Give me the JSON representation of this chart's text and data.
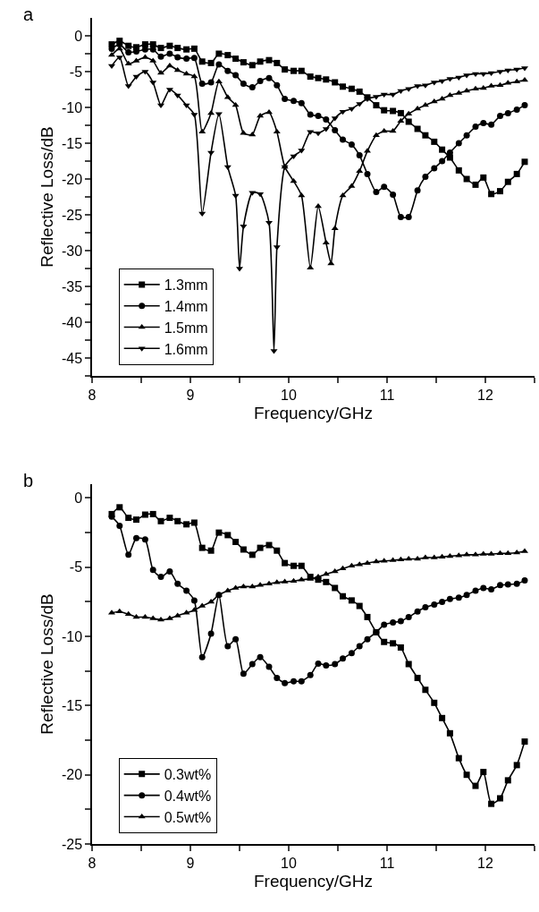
{
  "chart_data": [
    {
      "type": "line",
      "title": "a",
      "xlabel": "Frequency/GHz",
      "ylabel": "Reflective Loss/dB",
      "legend": "bottom left",
      "line_style": "solid",
      "xlim": [
        8,
        12.5
      ],
      "xticks": [
        8,
        {
          "value": 8.5,
          "label": null
        },
        9,
        {
          "value": 9.5,
          "label": null
        },
        10,
        {
          "value": 10.5,
          "label": null
        },
        11,
        {
          "value": 11.5,
          "label": null
        },
        12,
        {
          "value": 12.5,
          "label": null
        }
      ],
      "ylim": [
        -47.5,
        2.5
      ],
      "yticks": [
        0,
        {
          "value": -2.5,
          "label": null
        },
        -5,
        {
          "value": -7.5,
          "label": null
        },
        -10,
        {
          "value": -12.5,
          "label": null
        },
        -15,
        {
          "value": -17.5,
          "label": null
        },
        -20,
        {
          "value": -22.5,
          "label": null
        },
        -25,
        {
          "value": -27.5,
          "label": null
        },
        -30,
        {
          "value": -32.5,
          "label": null
        },
        -35,
        {
          "value": -37.5,
          "label": null
        },
        -40,
        {
          "value": -42.5,
          "label": null
        },
        -45,
        {
          "value": -47.5,
          "label": null
        }
      ],
      "x": [
        8.2,
        8.28,
        8.37,
        8.45,
        8.54,
        8.62,
        8.7,
        8.79,
        8.87,
        8.96,
        9.04,
        9.12,
        9.21,
        9.29,
        9.38,
        9.46,
        9.54,
        9.63,
        9.71,
        9.8,
        9.88,
        9.96,
        10.05,
        10.13,
        10.22,
        10.3,
        10.38,
        10.47,
        10.55,
        10.64,
        10.72,
        10.8,
        10.89,
        10.97,
        11.06,
        11.14,
        11.22,
        11.31,
        11.39,
        11.48,
        11.56,
        11.64,
        11.73,
        11.81,
        11.9,
        11.98,
        12.06,
        12.15,
        12.23,
        12.32,
        12.4
      ],
      "series": [
        {
          "name": "1.3mm",
          "color": "#000000",
          "marker": "square",
          "values": [
            -1.2,
            -0.7,
            -1.4,
            -1.6,
            -1.2,
            -1.2,
            -1.7,
            -1.4,
            -1.7,
            -1.9,
            -1.8,
            -3.6,
            -3.8,
            -2.5,
            -2.7,
            -3.2,
            -3.7,
            -4.1,
            -3.6,
            -3.4,
            -3.8,
            -4.7,
            -4.9,
            -4.9,
            -5.7,
            -5.9,
            -6.1,
            -6.5,
            -7.1,
            -7.4,
            -7.8,
            -8.6,
            -9.7,
            -10.4,
            -10.5,
            -10.8,
            -12,
            -13,
            -13.9,
            -14.8,
            -15.9,
            -17,
            -18.8,
            -20,
            -20.8,
            -19.8,
            -22.1,
            -21.7,
            -20.4,
            -19.3,
            -17.6
          ]
        },
        {
          "name": "1.4mm",
          "color": "#000000",
          "marker": "circle",
          "values": [
            -1.8,
            -1.2,
            -2.3,
            -2.2,
            -1.9,
            -1.9,
            -2.9,
            -2.5,
            -3,
            -3.2,
            -3.1,
            -6.7,
            -6.5,
            -4,
            -4.9,
            -5.5,
            -6.7,
            -7.2,
            -6.3,
            -5.9,
            -6.9,
            -8.8,
            -9.1,
            -9.4,
            -11,
            -11.2,
            -11.7,
            -13.2,
            -14.5,
            -15.2,
            -16.7,
            -19.3,
            -21.8,
            -21.1,
            -22.2,
            -25.3,
            -25.3,
            -21.6,
            -19.7,
            -18.5,
            -17.5,
            -16.3,
            -15,
            -13.9,
            -12.7,
            -12.2,
            -12.4,
            -11.2,
            -10.8,
            -10.3,
            -9.7
          ]
        },
        {
          "name": "1.5mm",
          "color": "#000000",
          "marker": "triangle-up",
          "x": [
            8.2,
            8.28,
            8.37,
            8.45,
            8.54,
            8.62,
            8.7,
            8.79,
            8.87,
            8.96,
            9.04,
            9.12,
            9.21,
            9.29,
            9.38,
            9.46,
            9.54,
            9.63,
            9.71,
            9.8,
            9.88,
            9.96,
            10.05,
            10.13,
            10.22,
            10.3,
            10.38,
            10.43,
            10.47,
            10.55,
            10.64,
            10.72,
            10.8,
            10.89,
            10.97,
            11.06,
            11.14,
            11.22,
            11.31,
            11.39,
            11.48,
            11.56,
            11.64,
            11.73,
            11.81,
            11.9,
            11.98,
            12.06,
            12.15,
            12.23,
            12.32,
            12.4
          ],
          "values": [
            -2.7,
            -1.8,
            -3.9,
            -3.5,
            -3,
            -3.5,
            -5.2,
            -4.2,
            -4.8,
            -5.3,
            -5.7,
            -13.4,
            -10.8,
            -6.4,
            -8.6,
            -9.7,
            -13.6,
            -13.8,
            -11.2,
            -10.7,
            -13.4,
            -18.3,
            -20.3,
            -22.3,
            -32.4,
            -23.8,
            -28.9,
            -31.8,
            -26.9,
            -22.3,
            -21,
            -18.9,
            -16.1,
            -13.9,
            -13.3,
            -13.3,
            -11.9,
            -10.9,
            -10.2,
            -9.7,
            -9.2,
            -8.8,
            -8.3,
            -8,
            -7.7,
            -7.4,
            -7.3,
            -7,
            -6.9,
            -6.6,
            -6.4,
            -6.2
          ]
        },
        {
          "name": "1.6mm",
          "color": "#000000",
          "marker": "triangle-down",
          "x": [
            8.2,
            8.28,
            8.37,
            8.45,
            8.54,
            8.62,
            8.7,
            8.79,
            8.87,
            8.96,
            9.04,
            9.12,
            9.21,
            9.29,
            9.38,
            9.46,
            9.5,
            9.54,
            9.63,
            9.71,
            9.8,
            9.85,
            9.88,
            9.96,
            10.05,
            10.13,
            10.22,
            10.3,
            10.38,
            10.47,
            10.55,
            10.64,
            10.72,
            10.8,
            10.89,
            10.97,
            11.06,
            11.14,
            11.22,
            11.31,
            11.39,
            11.48,
            11.56,
            11.64,
            11.73,
            11.81,
            11.9,
            11.98,
            12.06,
            12.15,
            12.23,
            12.32,
            12.4
          ],
          "values": [
            -4.2,
            -3,
            -7,
            -5.7,
            -5,
            -6.5,
            -9.7,
            -7.5,
            -8.3,
            -9.7,
            -11,
            -24.8,
            -16.3,
            -10.9,
            -18.3,
            -22.3,
            -32.5,
            -26.6,
            -21.9,
            -22.1,
            -26.1,
            -44,
            -29.5,
            -18.3,
            -16.8,
            -16,
            -13.4,
            -13.6,
            -13,
            -11.5,
            -10.6,
            -10.2,
            -9.5,
            -8.8,
            -8.5,
            -8.2,
            -8.2,
            -7.7,
            -7.4,
            -7,
            -6.9,
            -6.5,
            -6.3,
            -6,
            -5.8,
            -5.5,
            -5.3,
            -5.3,
            -5.2,
            -5,
            -4.8,
            -4.7,
            -4.5
          ]
        }
      ]
    },
    {
      "type": "line",
      "title": "b",
      "xlabel": "Frequency/GHz",
      "ylabel": "Reflective Loss/dB",
      "legend": "bottom left",
      "line_style": "solid",
      "xlim": [
        8,
        12.5
      ],
      "xticks": [
        8,
        {
          "value": 8.5,
          "label": null
        },
        9,
        {
          "value": 9.5,
          "label": null
        },
        10,
        {
          "value": 10.5,
          "label": null
        },
        11,
        {
          "value": 11.5,
          "label": null
        },
        12,
        {
          "value": 12.5,
          "label": null
        }
      ],
      "ylim": [
        -25,
        1
      ],
      "yticks": [
        0,
        {
          "value": -2.5,
          "label": null
        },
        -5,
        {
          "value": -7.5,
          "label": null
        },
        -10,
        {
          "value": -12.5,
          "label": null
        },
        -15,
        {
          "value": -17.5,
          "label": null
        },
        -20,
        {
          "value": -22.5,
          "label": null
        },
        -25
      ],
      "x": [
        8.2,
        8.28,
        8.37,
        8.45,
        8.54,
        8.62,
        8.7,
        8.79,
        8.87,
        8.96,
        9.04,
        9.12,
        9.21,
        9.29,
        9.38,
        9.46,
        9.54,
        9.63,
        9.71,
        9.8,
        9.88,
        9.96,
        10.05,
        10.13,
        10.22,
        10.3,
        10.38,
        10.47,
        10.55,
        10.64,
        10.72,
        10.8,
        10.89,
        10.97,
        11.06,
        11.14,
        11.22,
        11.31,
        11.39,
        11.48,
        11.56,
        11.64,
        11.73,
        11.81,
        11.9,
        11.98,
        12.06,
        12.15,
        12.23,
        12.32,
        12.4
      ],
      "series": [
        {
          "name": "0.3wt%",
          "color": "#000000",
          "marker": "square",
          "values": [
            -1.16,
            -0.67,
            -1.43,
            -1.56,
            -1.2,
            -1.16,
            -1.67,
            -1.43,
            -1.67,
            -1.9,
            -1.78,
            -3.6,
            -3.8,
            -2.5,
            -2.68,
            -3.17,
            -3.72,
            -4.1,
            -3.6,
            -3.4,
            -3.8,
            -4.7,
            -4.9,
            -4.9,
            -5.7,
            -5.9,
            -6.07,
            -6.5,
            -7.1,
            -7.4,
            -7.8,
            -8.6,
            -9.7,
            -10.4,
            -10.5,
            -10.8,
            -12,
            -13,
            -13.86,
            -14.8,
            -15.9,
            -17,
            -18.8,
            -20,
            -20.8,
            -19.8,
            -22.1,
            -21.7,
            -20.4,
            -19.3,
            -17.6
          ]
        },
        {
          "name": "0.4wt%",
          "color": "#000000",
          "marker": "circle",
          "values": [
            -1.34,
            -2,
            -4.1,
            -2.9,
            -3,
            -5.2,
            -5.7,
            -5.3,
            -6.2,
            -6.7,
            -7.4,
            -11.5,
            -9.8,
            -7,
            -10.7,
            -10.2,
            -12.7,
            -12,
            -11.5,
            -12.2,
            -13,
            -13.37,
            -13.24,
            -13.24,
            -12.8,
            -11.97,
            -12.1,
            -12,
            -11.6,
            -11.2,
            -10.7,
            -10.2,
            -9.7,
            -9.15,
            -9,
            -8.9,
            -8.6,
            -8.2,
            -7.9,
            -7.7,
            -7.5,
            -7.3,
            -7.2,
            -7,
            -6.7,
            -6.5,
            -6.6,
            -6.3,
            -6.25,
            -6.2,
            -5.96
          ]
        },
        {
          "name": "0.5wt%",
          "color": "#000000",
          "marker": "triangle-up",
          "values": [
            -8.3,
            -8.2,
            -8.4,
            -8.6,
            -8.6,
            -8.7,
            -8.8,
            -8.7,
            -8.5,
            -8.3,
            -8.1,
            -7.8,
            -7.5,
            -7,
            -6.7,
            -6.5,
            -6.4,
            -6.4,
            -6.3,
            -6.2,
            -6.1,
            -6.05,
            -6,
            -5.9,
            -5.85,
            -5.7,
            -5.5,
            -5.3,
            -5.1,
            -4.9,
            -4.8,
            -4.7,
            -4.6,
            -4.55,
            -4.5,
            -4.45,
            -4.4,
            -4.4,
            -4.3,
            -4.3,
            -4.25,
            -4.2,
            -4.15,
            -4.1,
            -4.1,
            -4.05,
            -4.05,
            -4,
            -4,
            -3.95,
            -3.85
          ]
        }
      ]
    }
  ]
}
